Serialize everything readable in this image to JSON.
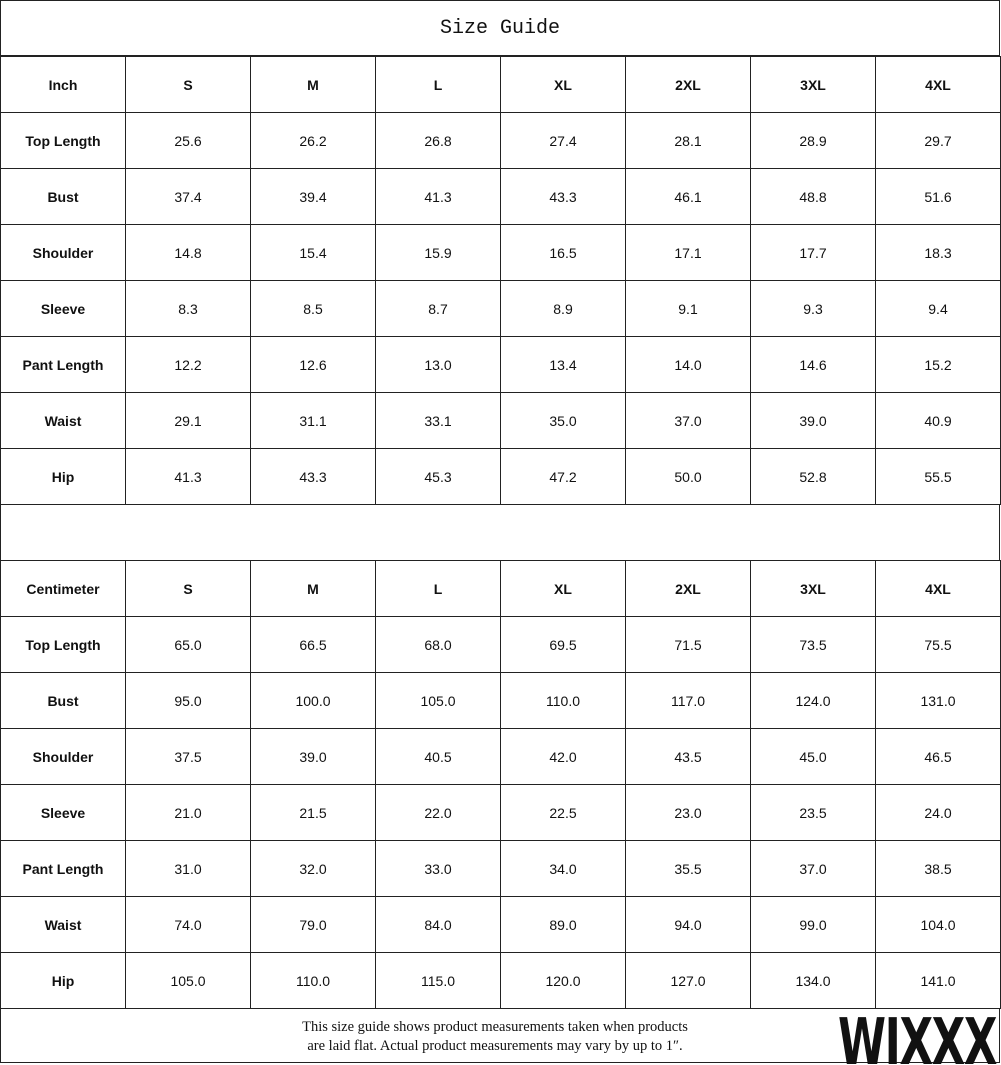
{
  "title": "Size Guide",
  "tables": [
    {
      "header": [
        "Inch",
        "S",
        "M",
        "L",
        "XL",
        "2XL",
        "3XL",
        "4XL"
      ],
      "rows": [
        [
          "Top Length",
          "25.6",
          "26.2",
          "26.8",
          "27.4",
          "28.1",
          "28.9",
          "29.7"
        ],
        [
          "Bust",
          "37.4",
          "39.4",
          "41.3",
          "43.3",
          "46.1",
          "48.8",
          "51.6"
        ],
        [
          "Shoulder",
          "14.8",
          "15.4",
          "15.9",
          "16.5",
          "17.1",
          "17.7",
          "18.3"
        ],
        [
          "Sleeve",
          "8.3",
          "8.5",
          "8.7",
          "8.9",
          "9.1",
          "9.3",
          "9.4"
        ],
        [
          "Pant Length",
          "12.2",
          "12.6",
          "13.0",
          "13.4",
          "14.0",
          "14.6",
          "15.2"
        ],
        [
          "Waist",
          "29.1",
          "31.1",
          "33.1",
          "35.0",
          "37.0",
          "39.0",
          "40.9"
        ],
        [
          "Hip",
          "41.3",
          "43.3",
          "45.3",
          "47.2",
          "50.0",
          "52.8",
          "55.5"
        ]
      ]
    },
    {
      "header": [
        "Centimeter",
        "S",
        "M",
        "L",
        "XL",
        "2XL",
        "3XL",
        "4XL"
      ],
      "rows": [
        [
          "Top Length",
          "65.0",
          "66.5",
          "68.0",
          "69.5",
          "71.5",
          "73.5",
          "75.5"
        ],
        [
          "Bust",
          "95.0",
          "100.0",
          "105.0",
          "110.0",
          "117.0",
          "124.0",
          "131.0"
        ],
        [
          "Shoulder",
          "37.5",
          "39.0",
          "40.5",
          "42.0",
          "43.5",
          "45.0",
          "46.5"
        ],
        [
          "Sleeve",
          "21.0",
          "21.5",
          "22.0",
          "22.5",
          "23.0",
          "23.5",
          "24.0"
        ],
        [
          "Pant Length",
          "31.0",
          "32.0",
          "33.0",
          "34.0",
          "35.5",
          "37.0",
          "38.5"
        ],
        [
          "Waist",
          "74.0",
          "79.0",
          "84.0",
          "89.0",
          "94.0",
          "99.0",
          "104.0"
        ],
        [
          "Hip",
          "105.0",
          "110.0",
          "115.0",
          "120.0",
          "127.0",
          "134.0",
          "141.0"
        ]
      ]
    }
  ],
  "footer": {
    "lines": [
      "This size guide shows product measurements taken when products",
      "are laid flat. Actual product measurements may vary by up to 1″."
    ]
  },
  "brand": "WIXXX"
}
